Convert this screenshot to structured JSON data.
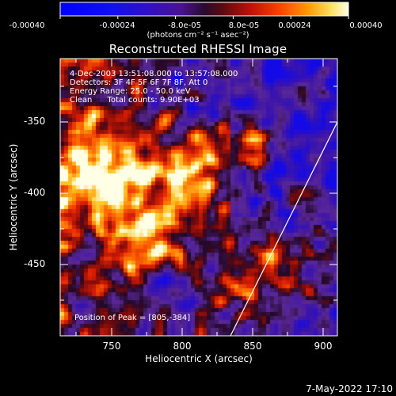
{
  "colorbar": {
    "tick_labels": [
      "-0.00040",
      "-0.00024",
      "-8.0e-05",
      "8.0e-05",
      "0.00024",
      "0.00040"
    ],
    "units": "(photons cm⁻² s⁻¹ asec⁻²)"
  },
  "title": "Reconstructed RHESSI Image",
  "annotations": {
    "time_range": "4-Dec-2003 13:51:08.000 to 13:57:08.000",
    "detectors": "Detectors: 3F 4F 5F 6F 7F 8F, Att 0",
    "energy_range": "Energy Range: 25.0 - 50.0 keV",
    "clean": "Clean      Total counts: 9.90E+03",
    "peak": "Position of Peak = [805,-384]"
  },
  "axes": {
    "xlabel": "Heliocentric X (arcsec)",
    "ylabel": "Heliocentric Y (arcsec)",
    "x_ticks": [
      "750",
      "800",
      "850",
      "900"
    ],
    "y_ticks": [
      "-350",
      "-400",
      "-450"
    ]
  },
  "footer": "7-May-2022 17:10",
  "colors": {
    "background": "#000000",
    "limb_line": "#ffffff"
  }
}
